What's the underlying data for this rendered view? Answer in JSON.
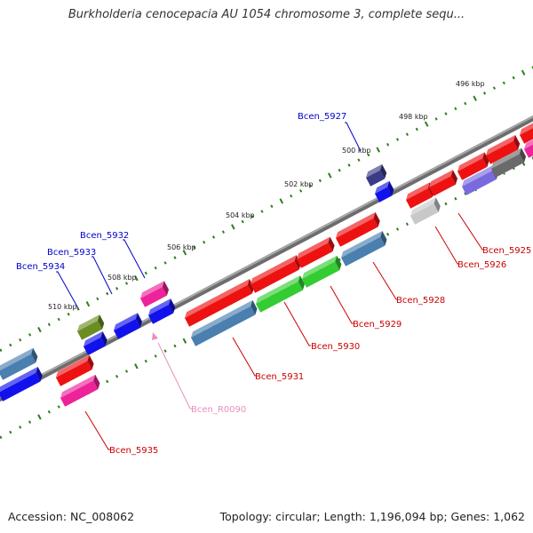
{
  "title": "Burkholderia cenocepacia AU 1054 chromosome 3, complete sequ...",
  "footer": {
    "accession": "Accession: NC_008062",
    "stats": "Topology: circular; Length: 1,196,094 bp; Genes: 1,062"
  },
  "colors": {
    "backbone": "#8a8a8a",
    "ticks": "#2e7d1f",
    "label_forward": "#0000cc",
    "label_reverse": "#cc0000",
    "label_rna": "#e890c0",
    "red": "#ee1111",
    "steelblue": "#4a7fb0",
    "blue": "#1111ee",
    "green": "#33cc33",
    "pink": "#ee2299",
    "olive": "#6b8e23",
    "navy": "#3b3b88",
    "gray": "#c8c8c8",
    "darkgray": "#6a6a6a",
    "violet": "#7a6ae0"
  },
  "scale_labels": [
    "496 kbp",
    "498 kbp",
    "500 kbp",
    "502 kbp",
    "504 kbp",
    "506 kbp",
    "508 kbp",
    "510 kbp"
  ],
  "gene_labels": {
    "forward": [
      "Bcen_5927",
      "Bcen_5932",
      "Bcen_5933",
      "Bcen_5934"
    ],
    "reverse": [
      "Bcen_5925",
      "Bcen_5926",
      "Bcen_5928",
      "Bcen_5929",
      "Bcen_5930",
      "Bcen_5931",
      "Bcen_5935"
    ],
    "rna": [
      "Bcen_R0090"
    ]
  }
}
